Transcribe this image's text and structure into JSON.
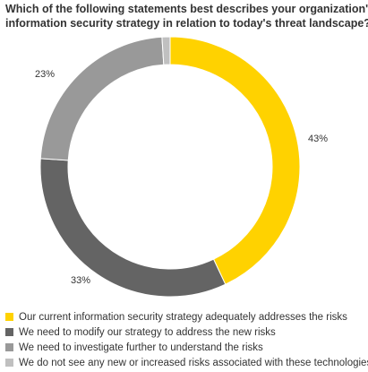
{
  "chart_data": {
    "type": "pie",
    "title_lines": [
      "Which of the following statements best describes your organization's",
      "information security strategy in relation to today's threat landscape?"
    ],
    "slices": [
      {
        "name": "Our current information security strategy adequately addresses the risks",
        "value": 43,
        "label": "43%",
        "color": "#ffd200"
      },
      {
        "name": "We need to modify our strategy to address the new risks",
        "value": 33,
        "label": "33%",
        "color": "#646464"
      },
      {
        "name": "We need to investigate further to understand the risks",
        "value": 23,
        "label": "23%",
        "color": "#999999"
      },
      {
        "name": "We do not see any new or increased risks associated with these technologies",
        "value": 1,
        "label": "",
        "color": "#c0c0c0"
      }
    ],
    "legend_position": "bottom"
  }
}
